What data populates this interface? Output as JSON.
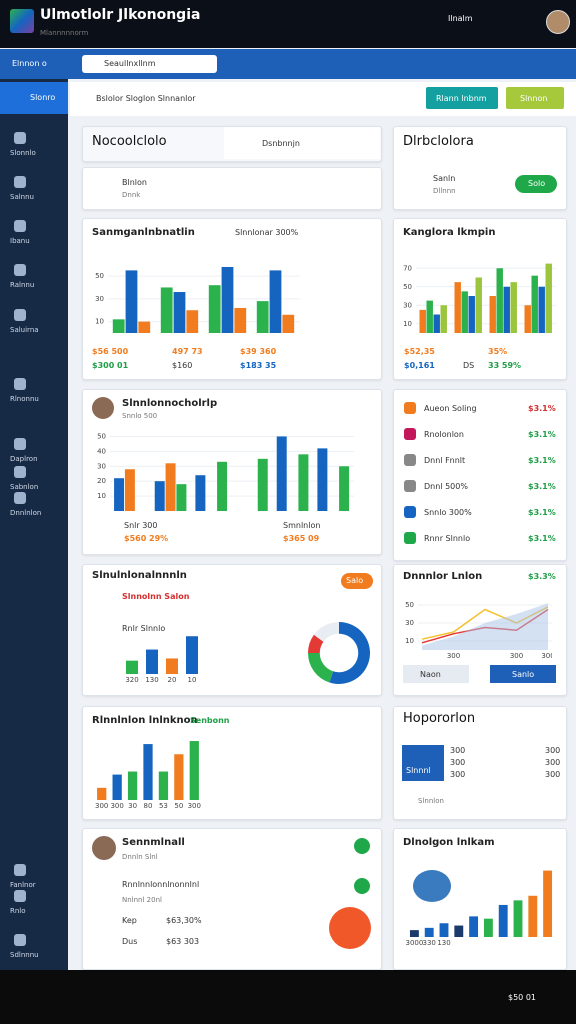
{
  "topbar": {
    "title": "Ulmotlolr Jlkonongia",
    "subtitle": "Mlannnnnorm",
    "status": "Ilnalm"
  },
  "navbar": {
    "brand": "Elnnon o",
    "search": "Seaullnxllnm"
  },
  "sidebar": {
    "active": "Slonro",
    "items": [
      "Slonnlo",
      "Salnnu",
      "Ibanu",
      "Ralnnu",
      "Saluirna",
      "Rlnonnu",
      "Daplron",
      "Sabnlon",
      "Dnnlnlon",
      "Fanlnor",
      "Rnlo",
      "Sdlnnnu"
    ]
  },
  "toolbar": {
    "path": "Bslolor Sloglon Slnnanlor",
    "button1": "Rlann lnbnm",
    "button2": "Slnnon"
  },
  "tabs": {
    "active": "Nocoolclolo",
    "other": "Dsnbnnjn"
  },
  "status_card": {
    "title": "Blnlon",
    "subtitle": "Dnnk"
  },
  "profile_card": {
    "title": "Dlrbclolora",
    "name": "Sanln",
    "sub": "Dllnnn",
    "badge": "Solo"
  },
  "list_card": {
    "items": [
      {
        "label": "Aueon Soling",
        "value": "$3.1%"
      },
      {
        "label": "Rnolonlon",
        "value": "$3.1%"
      },
      {
        "label": "Dnnl Fnnlt",
        "value": "$3.1%"
      },
      {
        "label": "Dnnl 500%",
        "value": "$3.1%"
      },
      {
        "label": "Snnlo 300%",
        "value": "$3.1%"
      },
      {
        "label": "Rnnr Slnnlo",
        "value": "$3.1%"
      }
    ]
  },
  "report_card": {
    "title": "Hopororlon",
    "box": "Slnnnl",
    "labels": [
      "300",
      "300",
      "300"
    ],
    "right": [
      "300",
      "300",
      "300"
    ],
    "foot": "Slnnlon"
  },
  "person_card": {
    "title": "Sennmlnall",
    "sub": "Dnnln Slnl",
    "heading": "Rnnlnnlonnlnonnlnl",
    "line": "Nnlnnl 20nl",
    "rows": [
      {
        "label": "Kep",
        "value": "$63,30%"
      },
      {
        "label": "Dus",
        "value": "$63 303"
      }
    ]
  },
  "bottombar": {
    "status": "$50 01"
  },
  "chart_data": [
    {
      "type": "bar",
      "title": "Sanmganlnbnatlin",
      "subtitle": "Slnnlonar 300%",
      "ylim": [
        0,
        65
      ],
      "yticks": [
        10,
        30,
        50
      ],
      "series": [
        {
          "color": "#2bb24c",
          "values": [
            12,
            40,
            42,
            28
          ]
        },
        {
          "color": "#1565c0",
          "values": [
            55,
            36,
            58,
            55
          ]
        },
        {
          "color": "#f07c1f",
          "values": [
            10,
            20,
            22,
            16
          ]
        }
      ],
      "notes": [
        "$56 500",
        "497 73",
        "$39 360",
        "$300 01",
        "$160",
        "$183 35"
      ]
    },
    {
      "type": "bar",
      "title": "Kanglora lkmpin",
      "ylim": [
        0,
        80
      ],
      "yticks": [
        10,
        30,
        50,
        70
      ],
      "series": [
        {
          "color": "#f07c1f",
          "values": [
            25,
            55,
            40,
            30
          ]
        },
        {
          "color": "#2bb24c",
          "values": [
            35,
            45,
            70,
            62
          ]
        },
        {
          "color": "#1565c0",
          "values": [
            20,
            40,
            50,
            50
          ]
        },
        {
          "color": "#9bc53d",
          "values": [
            30,
            60,
            55,
            75
          ]
        }
      ],
      "notes": [
        "$52,35",
        "35%",
        "$0,161",
        "DS",
        "33 59%"
      ]
    },
    {
      "type": "bar",
      "title": "Slnnlonnocholrlp",
      "subtitle": "Snnlo 500",
      "ylim": [
        0,
        55
      ],
      "yticks": [
        10,
        20,
        30,
        40,
        50
      ],
      "series": [
        {
          "color": "#1565c0",
          "values": [
            22,
            20,
            24,
            null,
            50,
            42
          ]
        },
        {
          "color": "#f07c1f",
          "values": [
            28,
            32,
            null,
            null,
            null,
            null
          ]
        },
        {
          "color": "#2bb24c",
          "values": [
            null,
            18,
            33,
            35,
            38,
            30
          ]
        }
      ],
      "notes": [
        "Snlr 300",
        "$560 29%",
        "Smnlnlon",
        "$365 09"
      ]
    },
    {
      "type": "bar",
      "title": "Slnulnlonalnnnln",
      "subtitle": "Slnnolnn Salon",
      "badge": "Salo",
      "label": "Rnlr Slnnlo",
      "ylim": [
        0,
        45
      ],
      "categories": [
        "320",
        "130",
        "20",
        "10"
      ],
      "values": [
        12,
        22,
        14,
        34
      ],
      "colors": [
        "#2bb24c",
        "#1565c0",
        "#f07c1f",
        "#1565c0"
      ]
    },
    {
      "type": "pie",
      "values": [
        55,
        20,
        10,
        15
      ],
      "colors": [
        "#1565c0",
        "#2bb24c",
        "#e53935",
        "#e8edf3"
      ]
    },
    {
      "type": "line",
      "title": "Dnnnlor Lnlon",
      "value": "$3.3%",
      "buttons": [
        "Naon",
        "Sanlo"
      ],
      "ylim": [
        0,
        60
      ],
      "yticks": [
        10,
        30,
        50
      ],
      "categories": [
        null,
        "300",
        null,
        "300",
        "300"
      ],
      "series": [
        {
          "color": "#e53935",
          "values": [
            8,
            18,
            25,
            22,
            45
          ]
        },
        {
          "color": "#f2c230",
          "values": [
            12,
            20,
            45,
            30,
            48
          ]
        },
        {
          "color": "#a9c4e8",
          "area": true,
          "values": [
            5,
            15,
            30,
            40,
            52
          ]
        }
      ]
    },
    {
      "type": "bar",
      "title": "Rlnnlnlon lnlnknon",
      "badge": "Senbonn",
      "ylim": [
        0,
        60
      ],
      "categories": [
        "300",
        "300",
        "30",
        "80",
        "53",
        "50",
        "300"
      ],
      "values": [
        12,
        25,
        28,
        55,
        28,
        45,
        58
      ],
      "colors": [
        "#f07c1f",
        "#1565c0",
        "#2bb24c",
        "#1565c0",
        "#2bb24c",
        "#f07c1f",
        "#2bb24c"
      ]
    },
    {
      "type": "bar",
      "title": "Dlnolgon lnlkam",
      "ylim": [
        0,
        62
      ],
      "categories": [
        "3000",
        "330",
        "130",
        null,
        null,
        null,
        null,
        null,
        null,
        null
      ],
      "values": [
        6,
        8,
        12,
        10,
        18,
        16,
        28,
        32,
        36,
        58
      ],
      "colors": [
        "#1a3a6b",
        "#1565c0",
        "#1565c0",
        "#1a3a6b",
        "#1565c0",
        "#2bb24c",
        "#1565c0",
        "#2bb24c",
        "#f07c1f",
        "#f07c1f"
      ]
    }
  ]
}
